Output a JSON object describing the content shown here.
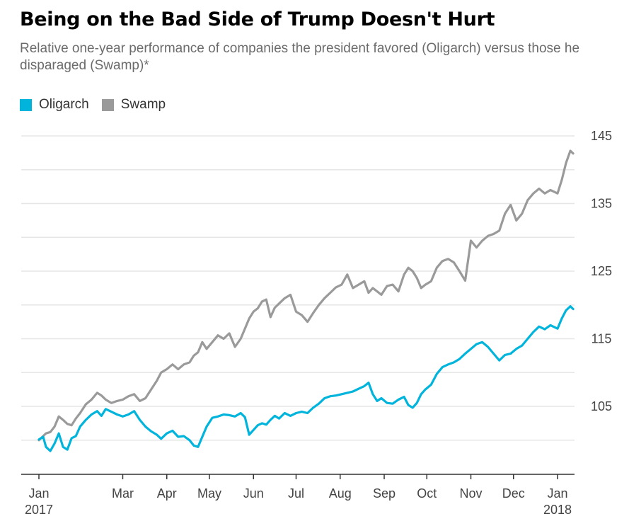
{
  "title": "Being on the Bad Side of Trump Doesn't Hurt",
  "subtitle": "Relative one-year performance of companies the president favored (Oligarch) versus those he disparaged (Swamp)*",
  "colors": {
    "oligarch": "#00b4dc",
    "swamp": "#9a9a9a",
    "grid": "#e6e6e6",
    "axis": "#333333"
  },
  "chart_data": {
    "type": "line",
    "title": "Being on the Bad Side of Trump Doesn't Hurt",
    "subtitle": "Relative one-year performance of companies the president favored (Oligarch) versus those he disparaged (Swamp)*",
    "ylim": [
      95,
      147
    ],
    "y_ticks": [
      105,
      115,
      125,
      135,
      145
    ],
    "grid_values": [
      100,
      105,
      110,
      115,
      120,
      125,
      130,
      135,
      140,
      145
    ],
    "legend_position": "top-left",
    "x_ticks": [
      {
        "date": "2017-01-01",
        "label": "Jan",
        "sublabel": "2017"
      },
      {
        "date": "2017-03-01",
        "label": "Mar",
        "sublabel": ""
      },
      {
        "date": "2017-04-01",
        "label": "Apr",
        "sublabel": ""
      },
      {
        "date": "2017-05-01",
        "label": "May",
        "sublabel": ""
      },
      {
        "date": "2017-06-01",
        "label": "Jun",
        "sublabel": ""
      },
      {
        "date": "2017-07-01",
        "label": "Jul",
        "sublabel": ""
      },
      {
        "date": "2017-08-01",
        "label": "Aug",
        "sublabel": ""
      },
      {
        "date": "2017-09-01",
        "label": "Sep",
        "sublabel": ""
      },
      {
        "date": "2017-10-01",
        "label": "Oct",
        "sublabel": ""
      },
      {
        "date": "2017-11-01",
        "label": "Nov",
        "sublabel": ""
      },
      {
        "date": "2017-12-01",
        "label": "Dec",
        "sublabel": ""
      },
      {
        "date": "2018-01-01",
        "label": "Jan",
        "sublabel": "2018"
      }
    ],
    "xlim": [
      "2017-01-01",
      "2018-01-01"
    ],
    "series": [
      {
        "name": "Oligarch",
        "color": "#00b4dc",
        "points": [
          [
            "2017-01-01",
            100.1
          ],
          [
            "2017-01-04",
            100.5
          ],
          [
            "2017-01-06",
            99.0
          ],
          [
            "2017-01-09",
            98.4
          ],
          [
            "2017-01-12",
            99.5
          ],
          [
            "2017-01-15",
            101.0
          ],
          [
            "2017-01-18",
            99.0
          ],
          [
            "2017-01-21",
            98.6
          ],
          [
            "2017-01-24",
            100.3
          ],
          [
            "2017-01-27",
            100.6
          ],
          [
            "2017-01-30",
            102.0
          ],
          [
            "2017-02-03",
            103.0
          ],
          [
            "2017-02-07",
            103.8
          ],
          [
            "2017-02-11",
            104.3
          ],
          [
            "2017-02-14",
            103.6
          ],
          [
            "2017-02-17",
            104.6
          ],
          [
            "2017-02-21",
            104.2
          ],
          [
            "2017-02-25",
            103.8
          ],
          [
            "2017-03-01",
            103.5
          ],
          [
            "2017-03-05",
            103.8
          ],
          [
            "2017-03-09",
            104.3
          ],
          [
            "2017-03-13",
            103.0
          ],
          [
            "2017-03-17",
            102.0
          ],
          [
            "2017-03-21",
            101.3
          ],
          [
            "2017-03-25",
            100.8
          ],
          [
            "2017-03-28",
            100.2
          ],
          [
            "2017-04-01",
            101.0
          ],
          [
            "2017-04-05",
            101.4
          ],
          [
            "2017-04-09",
            100.5
          ],
          [
            "2017-04-13",
            100.6
          ],
          [
            "2017-04-17",
            100.0
          ],
          [
            "2017-04-20",
            99.2
          ],
          [
            "2017-04-23",
            99.0
          ],
          [
            "2017-04-26",
            100.5
          ],
          [
            "2017-04-29",
            102.0
          ],
          [
            "2017-05-03",
            103.3
          ],
          [
            "2017-05-07",
            103.5
          ],
          [
            "2017-05-11",
            103.8
          ],
          [
            "2017-05-15",
            103.7
          ],
          [
            "2017-05-19",
            103.5
          ],
          [
            "2017-05-23",
            104.0
          ],
          [
            "2017-05-26",
            103.4
          ],
          [
            "2017-05-29",
            100.8
          ],
          [
            "2017-06-01",
            101.5
          ],
          [
            "2017-06-04",
            102.2
          ],
          [
            "2017-06-07",
            102.5
          ],
          [
            "2017-06-10",
            102.3
          ],
          [
            "2017-06-13",
            103.0
          ],
          [
            "2017-06-16",
            103.6
          ],
          [
            "2017-06-19",
            103.2
          ],
          [
            "2017-06-23",
            104.0
          ],
          [
            "2017-06-27",
            103.6
          ],
          [
            "2017-07-01",
            104.0
          ],
          [
            "2017-07-05",
            104.2
          ],
          [
            "2017-07-09",
            104.0
          ],
          [
            "2017-07-13",
            104.8
          ],
          [
            "2017-07-17",
            105.4
          ],
          [
            "2017-07-21",
            106.2
          ],
          [
            "2017-07-25",
            106.5
          ],
          [
            "2017-07-29",
            106.6
          ],
          [
            "2017-08-02",
            106.8
          ],
          [
            "2017-08-06",
            107.0
          ],
          [
            "2017-08-10",
            107.2
          ],
          [
            "2017-08-14",
            107.6
          ],
          [
            "2017-08-18",
            108.0
          ],
          [
            "2017-08-21",
            108.5
          ],
          [
            "2017-08-24",
            106.8
          ],
          [
            "2017-08-27",
            105.8
          ],
          [
            "2017-08-30",
            106.2
          ],
          [
            "2017-09-03",
            105.5
          ],
          [
            "2017-09-07",
            105.4
          ],
          [
            "2017-09-11",
            106.0
          ],
          [
            "2017-09-15",
            106.4
          ],
          [
            "2017-09-18",
            105.2
          ],
          [
            "2017-09-21",
            104.8
          ],
          [
            "2017-09-24",
            105.5
          ],
          [
            "2017-09-27",
            106.8
          ],
          [
            "2017-09-30",
            107.5
          ],
          [
            "2017-10-04",
            108.2
          ],
          [
            "2017-10-08",
            109.8
          ],
          [
            "2017-10-12",
            110.8
          ],
          [
            "2017-10-16",
            111.2
          ],
          [
            "2017-10-20",
            111.5
          ],
          [
            "2017-10-24",
            112.0
          ],
          [
            "2017-10-28",
            112.8
          ],
          [
            "2017-11-01",
            113.5
          ],
          [
            "2017-11-05",
            114.2
          ],
          [
            "2017-11-09",
            114.5
          ],
          [
            "2017-11-13",
            113.8
          ],
          [
            "2017-11-17",
            112.8
          ],
          [
            "2017-11-21",
            111.8
          ],
          [
            "2017-11-25",
            112.6
          ],
          [
            "2017-11-29",
            112.8
          ],
          [
            "2017-12-03",
            113.5
          ],
          [
            "2017-12-07",
            114.0
          ],
          [
            "2017-12-11",
            115.0
          ],
          [
            "2017-12-15",
            116.0
          ],
          [
            "2017-12-19",
            116.8
          ],
          [
            "2017-12-23",
            116.4
          ],
          [
            "2017-12-27",
            117.0
          ],
          [
            "2018-01-01",
            116.5
          ],
          [
            "2018-01-04",
            118.0
          ],
          [
            "2018-01-07",
            119.2
          ],
          [
            "2018-01-10",
            119.8
          ],
          [
            "2018-01-12",
            119.4
          ]
        ]
      },
      {
        "name": "Swamp",
        "color": "#9a9a9a",
        "points": [
          [
            "2017-01-01",
            100.0
          ],
          [
            "2017-01-04",
            100.6
          ],
          [
            "2017-01-06",
            101.0
          ],
          [
            "2017-01-09",
            101.2
          ],
          [
            "2017-01-12",
            102.0
          ],
          [
            "2017-01-15",
            103.5
          ],
          [
            "2017-01-18",
            103.0
          ],
          [
            "2017-01-21",
            102.4
          ],
          [
            "2017-01-24",
            102.2
          ],
          [
            "2017-01-27",
            103.2
          ],
          [
            "2017-01-30",
            104.0
          ],
          [
            "2017-02-03",
            105.3
          ],
          [
            "2017-02-07",
            106.0
          ],
          [
            "2017-02-11",
            107.0
          ],
          [
            "2017-02-14",
            106.6
          ],
          [
            "2017-02-17",
            106.0
          ],
          [
            "2017-02-21",
            105.5
          ],
          [
            "2017-02-25",
            105.8
          ],
          [
            "2017-03-01",
            106.0
          ],
          [
            "2017-03-05",
            106.5
          ],
          [
            "2017-03-09",
            106.8
          ],
          [
            "2017-03-13",
            105.8
          ],
          [
            "2017-03-17",
            106.2
          ],
          [
            "2017-03-21",
            107.5
          ],
          [
            "2017-03-25",
            108.8
          ],
          [
            "2017-03-28",
            110.0
          ],
          [
            "2017-04-01",
            110.5
          ],
          [
            "2017-04-05",
            111.2
          ],
          [
            "2017-04-09",
            110.5
          ],
          [
            "2017-04-13",
            111.2
          ],
          [
            "2017-04-17",
            111.5
          ],
          [
            "2017-04-20",
            112.5
          ],
          [
            "2017-04-23",
            113.0
          ],
          [
            "2017-04-26",
            114.5
          ],
          [
            "2017-04-29",
            113.5
          ],
          [
            "2017-05-03",
            114.5
          ],
          [
            "2017-05-07",
            115.5
          ],
          [
            "2017-05-11",
            115.0
          ],
          [
            "2017-05-15",
            115.8
          ],
          [
            "2017-05-19",
            113.8
          ],
          [
            "2017-05-23",
            115.0
          ],
          [
            "2017-05-26",
            116.5
          ],
          [
            "2017-05-29",
            118.0
          ],
          [
            "2017-06-01",
            119.0
          ],
          [
            "2017-06-04",
            119.5
          ],
          [
            "2017-06-07",
            120.5
          ],
          [
            "2017-06-10",
            120.8
          ],
          [
            "2017-06-13",
            118.2
          ],
          [
            "2017-06-16",
            119.6
          ],
          [
            "2017-06-19",
            120.2
          ],
          [
            "2017-06-23",
            121.0
          ],
          [
            "2017-06-27",
            121.5
          ],
          [
            "2017-07-01",
            119.0
          ],
          [
            "2017-07-05",
            118.5
          ],
          [
            "2017-07-09",
            117.5
          ],
          [
            "2017-07-13",
            118.8
          ],
          [
            "2017-07-17",
            120.0
          ],
          [
            "2017-07-21",
            121.0
          ],
          [
            "2017-07-25",
            121.8
          ],
          [
            "2017-07-29",
            122.6
          ],
          [
            "2017-08-02",
            123.0
          ],
          [
            "2017-08-06",
            124.5
          ],
          [
            "2017-08-10",
            122.5
          ],
          [
            "2017-08-14",
            123.0
          ],
          [
            "2017-08-18",
            123.5
          ],
          [
            "2017-08-21",
            121.8
          ],
          [
            "2017-08-24",
            122.5
          ],
          [
            "2017-08-27",
            122.0
          ],
          [
            "2017-08-30",
            121.5
          ],
          [
            "2017-09-03",
            122.8
          ],
          [
            "2017-09-07",
            123.0
          ],
          [
            "2017-09-11",
            122.0
          ],
          [
            "2017-09-15",
            124.5
          ],
          [
            "2017-09-18",
            125.5
          ],
          [
            "2017-09-21",
            125.0
          ],
          [
            "2017-09-24",
            124.0
          ],
          [
            "2017-09-27",
            122.5
          ],
          [
            "2017-09-30",
            123.0
          ],
          [
            "2017-10-04",
            123.5
          ],
          [
            "2017-10-08",
            125.5
          ],
          [
            "2017-10-12",
            126.5
          ],
          [
            "2017-10-16",
            126.8
          ],
          [
            "2017-10-20",
            126.3
          ],
          [
            "2017-10-24",
            125.0
          ],
          [
            "2017-10-28",
            123.6
          ],
          [
            "2017-11-01",
            129.5
          ],
          [
            "2017-11-05",
            128.5
          ],
          [
            "2017-11-09",
            129.5
          ],
          [
            "2017-11-13",
            130.2
          ],
          [
            "2017-11-17",
            130.5
          ],
          [
            "2017-11-21",
            131.0
          ],
          [
            "2017-11-25",
            133.5
          ],
          [
            "2017-11-29",
            134.8
          ],
          [
            "2017-12-03",
            132.5
          ],
          [
            "2017-12-07",
            133.5
          ],
          [
            "2017-12-11",
            135.5
          ],
          [
            "2017-12-15",
            136.5
          ],
          [
            "2017-12-19",
            137.2
          ],
          [
            "2017-12-23",
            136.5
          ],
          [
            "2017-12-27",
            137.0
          ],
          [
            "2018-01-01",
            136.5
          ],
          [
            "2018-01-04",
            138.5
          ],
          [
            "2018-01-07",
            141.0
          ],
          [
            "2018-01-10",
            142.8
          ],
          [
            "2018-01-12",
            142.4
          ]
        ]
      }
    ]
  }
}
